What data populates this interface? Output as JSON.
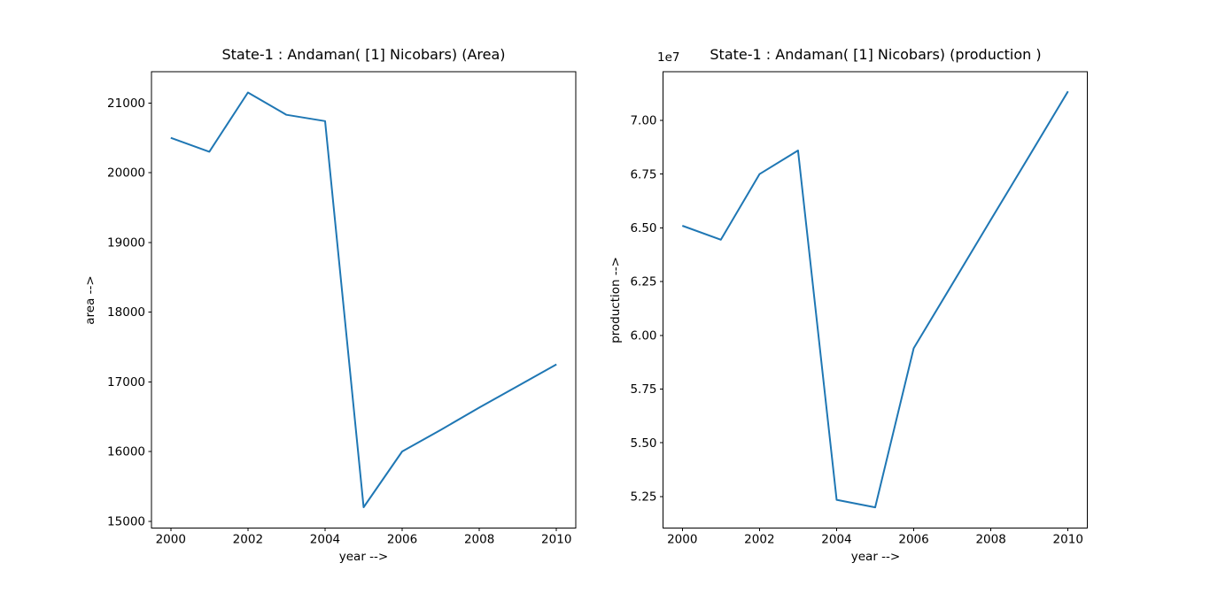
{
  "figure": {
    "background": "#ffffff",
    "text_color": "#000000",
    "line_color": "#1f77b4"
  },
  "chart_data": [
    {
      "type": "line",
      "title": "State-1 : Andaman( [1] Nicobars) (Area)",
      "xlabel": "year -->",
      "ylabel": "area -->",
      "offset_text": "",
      "line_color": "#1f77b4",
      "grid": false,
      "legend": null,
      "x": [
        2000,
        2001,
        2002,
        2003,
        2004,
        2005,
        2006,
        2007,
        2008,
        2009,
        2010
      ],
      "y": [
        20500,
        20300,
        21150,
        20830,
        20740,
        15200,
        16000,
        16310,
        16630,
        16940,
        17250
      ],
      "xlim": [
        1999.5,
        2010.5
      ],
      "ylim": [
        14902,
        21448
      ],
      "xticks": [
        2000,
        2002,
        2004,
        2006,
        2008,
        2010
      ],
      "xtick_labels": [
        "2000",
        "2002",
        "2004",
        "2006",
        "2008",
        "2010"
      ],
      "yticks": [
        15000,
        16000,
        17000,
        18000,
        19000,
        20000,
        21000
      ],
      "ytick_labels": [
        "15000",
        "16000",
        "17000",
        "18000",
        "19000",
        "20000",
        "21000"
      ]
    },
    {
      "type": "line",
      "title": "State-1 : Andaman( [1] Nicobars) (production )",
      "xlabel": "year -->",
      "ylabel": "production -->",
      "offset_text": "1e7",
      "line_color": "#1f77b4",
      "grid": false,
      "legend": null,
      "x": [
        2000,
        2001,
        2002,
        2003,
        2004,
        2005,
        2006,
        2007,
        2008,
        2009,
        2010
      ],
      "y": [
        65100000,
        64450000,
        67500000,
        68600000,
        52350000,
        52000000,
        59400000,
        62390000,
        65380000,
        68360000,
        71350000
      ],
      "xlim": [
        1999.5,
        2010.5
      ],
      "ylim": [
        51035000,
        72265000
      ],
      "xticks": [
        2000,
        2002,
        2004,
        2006,
        2008,
        2010
      ],
      "xtick_labels": [
        "2000",
        "2002",
        "2004",
        "2006",
        "2008",
        "2010"
      ],
      "yticks": [
        52500000,
        55000000,
        57500000,
        60000000,
        62500000,
        65000000,
        67500000,
        70000000
      ],
      "ytick_labels": [
        "5.25",
        "5.50",
        "5.75",
        "6.00",
        "6.25",
        "6.50",
        "6.75",
        "7.00"
      ]
    }
  ]
}
